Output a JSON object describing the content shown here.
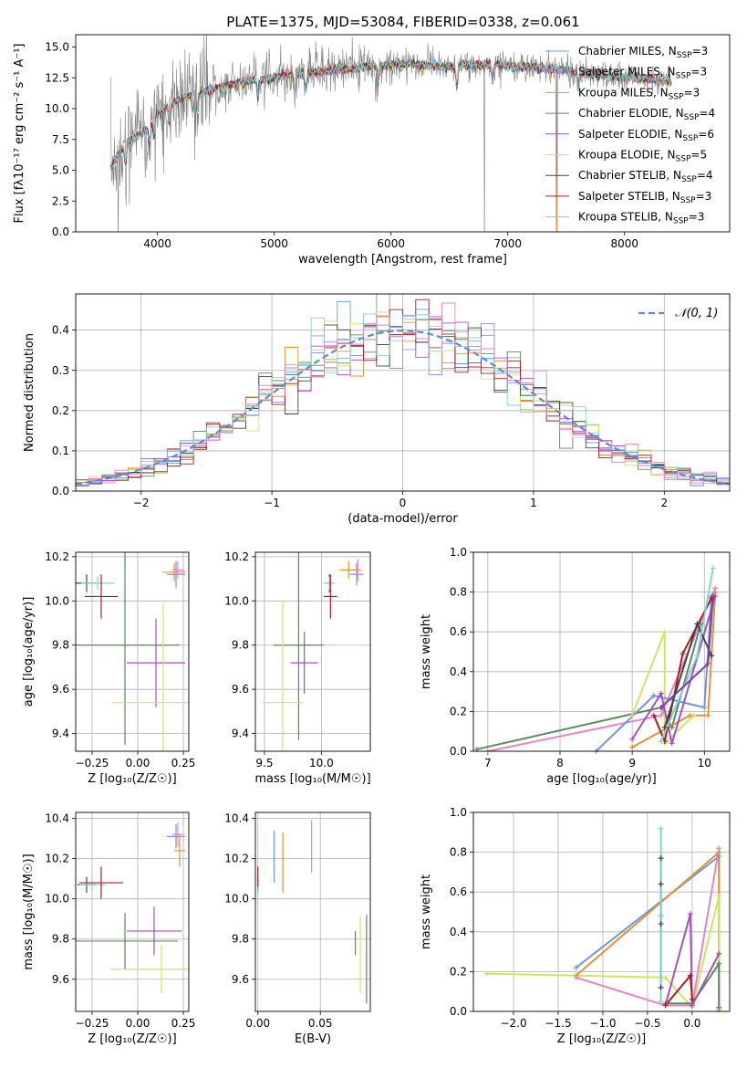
{
  "figure": {
    "title": "PLATE=1375, MJD=53084, FIBERID=0338, z=0.061"
  },
  "colors": [
    "#6f97e0",
    "#9a8de0",
    "#e89134",
    "#5b8a5b",
    "#a54fc3",
    "#d7e25c",
    "#444444",
    "#b01c1c",
    "#7fd2dc",
    "#e884c4",
    "#808080"
  ],
  "chart_data": [
    {
      "id": "spectrum",
      "type": "line",
      "xlabel": "wavelength [Angstrom, rest frame]",
      "ylabel": "Flux [fλ10⁻¹⁷ erg cm⁻² s⁻¹ A⁻¹]",
      "xlim": [
        3300,
        8900
      ],
      "ylim": [
        0,
        16
      ],
      "xticks": [
        4000,
        5000,
        6000,
        7000,
        8000
      ],
      "yticks": [
        0.0,
        2.5,
        5.0,
        7.5,
        10.0,
        12.5,
        15.0
      ],
      "grid": false,
      "legend_position": "right",
      "data_color": "#808080",
      "series": [
        {
          "name": "Chabrier MILES, N",
          "sub": "SSP",
          "suffix": "=3",
          "color": "#6f97e0"
        },
        {
          "name": "Salpeter MILES, N",
          "sub": "SSP",
          "suffix": "=3",
          "color": "#9a8de0"
        },
        {
          "name": "Kroupa MILES, N",
          "sub": "SSP",
          "suffix": "=3",
          "color": "#e89134"
        },
        {
          "name": "Chabrier ELODIE, N",
          "sub": "SSP",
          "suffix": "=4",
          "color": "#5b8a5b"
        },
        {
          "name": "Salpeter ELODIE, N",
          "sub": "SSP",
          "suffix": "=6",
          "color": "#a54fc3"
        },
        {
          "name": "Kroupa ELODIE, N",
          "sub": "SSP",
          "suffix": "=5",
          "color": "#d7e25c"
        },
        {
          "name": "Chabrier STELIB, N",
          "sub": "SSP",
          "suffix": "=4",
          "color": "#444444"
        },
        {
          "name": "Salpeter STELIB, N",
          "sub": "SSP",
          "suffix": "=3",
          "color": "#b01c1c"
        },
        {
          "name": "Kroupa STELIB, N",
          "sub": "SSP",
          "suffix": "=3",
          "color": "#7fd2dc"
        }
      ],
      "continuum": [
        [
          3600,
          5.2
        ],
        [
          3700,
          6.8
        ],
        [
          3800,
          7.6
        ],
        [
          3900,
          8.2
        ],
        [
          4000,
          9.6
        ],
        [
          4100,
          10.3
        ],
        [
          4200,
          10.8
        ],
        [
          4300,
          11.1
        ],
        [
          4500,
          11.6
        ],
        [
          4700,
          12.1
        ],
        [
          4900,
          12.4
        ],
        [
          5100,
          12.7
        ],
        [
          5300,
          12.9
        ],
        [
          5500,
          13.1
        ],
        [
          5700,
          13.3
        ],
        [
          5900,
          13.5
        ],
        [
          6100,
          13.6
        ],
        [
          6300,
          13.5
        ],
        [
          6500,
          13.4
        ],
        [
          6700,
          13.6
        ],
        [
          6900,
          13.6
        ],
        [
          7100,
          13.4
        ],
        [
          7300,
          13.3
        ],
        [
          7500,
          13.1
        ],
        [
          7700,
          12.9
        ],
        [
          7900,
          12.6
        ],
        [
          8100,
          12.5
        ],
        [
          8300,
          12.3
        ],
        [
          8400,
          12.2
        ]
      ]
    },
    {
      "id": "residuals",
      "type": "histogram",
      "xlabel": "(data-model)/error",
      "ylabel": "Normed distribution",
      "xlim": [
        -2.5,
        2.5
      ],
      "ylim": [
        0,
        0.49
      ],
      "xticks": [
        -2,
        -1,
        0,
        1,
        2
      ],
      "yticks": [
        0.0,
        0.1,
        0.2,
        0.3,
        0.4
      ],
      "grid": true,
      "bin_width": 0.1,
      "legend_position": "top-right",
      "reference": {
        "name": "𝒩(0, 1)",
        "color": "#5b8bd6",
        "style": "dashed",
        "mean": 0,
        "sigma": 1
      }
    },
    {
      "id": "age-vs-Z",
      "type": "scatter",
      "xlabel": "Z [log₁₀(Z/Z☉)]",
      "ylabel": "age  [log₁₀(age/yr)]",
      "xlim": [
        -0.34,
        0.28
      ],
      "ylim": [
        9.32,
        10.22
      ],
      "xticks": [
        -0.25,
        0.0,
        0.25
      ],
      "yticks": [
        9.4,
        9.6,
        9.8,
        10.0,
        10.2
      ],
      "grid": true,
      "points": [
        {
          "x": -0.28,
          "y": 10.08,
          "xerr": 0.06,
          "yerr": 0.04,
          "color": "#444444"
        },
        {
          "x": -0.22,
          "y": 10.08,
          "xerr": 0.09,
          "yerr": 0.03,
          "color": "#7fd2dc"
        },
        {
          "x": -0.2,
          "y": 10.02,
          "xerr": 0.09,
          "yerr": 0.1,
          "color": "#b01c1c"
        },
        {
          "x": 0.21,
          "y": 10.12,
          "xerr": 0.05,
          "yerr": 0.06,
          "color": "#6f97e0"
        },
        {
          "x": 0.22,
          "y": 10.14,
          "xerr": 0.03,
          "yerr": 0.04,
          "color": "#e884c4"
        },
        {
          "x": 0.2,
          "y": 10.13,
          "xerr": 0.06,
          "yerr": 0.04,
          "color": "#e89134"
        },
        {
          "x": -0.07,
          "y": 9.8,
          "xerr": 0.3,
          "yerr": 0.45,
          "color": "#5b8a5b"
        },
        {
          "x": 0.1,
          "y": 9.72,
          "xerr": 0.16,
          "yerr": 0.2,
          "color": "#a54fc3"
        },
        {
          "x": 0.14,
          "y": 9.54,
          "xerr": 0.28,
          "yerr": 0.45,
          "color": "#d7e25c"
        }
      ]
    },
    {
      "id": "age-vs-mass",
      "type": "scatter",
      "xlabel": "mass [log₁₀(M/M☉)]",
      "ylabel": "",
      "xlim": [
        9.42,
        10.43
      ],
      "ylim": [
        9.32,
        10.22
      ],
      "xticks": [
        9.5,
        10.0
      ],
      "yticks": [
        9.4,
        9.6,
        9.8,
        10.0,
        10.2
      ],
      "grid": true,
      "points": [
        {
          "x": 10.07,
          "y": 10.08,
          "xerr": 0.03,
          "yerr": 0.04,
          "color": "#444444"
        },
        {
          "x": 10.07,
          "y": 10.08,
          "xerr": 0.05,
          "yerr": 0.03,
          "color": "#7fd2dc"
        },
        {
          "x": 10.08,
          "y": 10.02,
          "xerr": 0.06,
          "yerr": 0.1,
          "color": "#b01c1c"
        },
        {
          "x": 10.31,
          "y": 10.12,
          "xerr": 0.06,
          "yerr": 0.05,
          "color": "#6f97e0"
        },
        {
          "x": 10.32,
          "y": 10.14,
          "xerr": 0.03,
          "yerr": 0.05,
          "color": "#e884c4"
        },
        {
          "x": 10.24,
          "y": 10.14,
          "xerr": 0.08,
          "yerr": 0.04,
          "color": "#e89134"
        },
        {
          "x": 9.8,
          "y": 9.8,
          "xerr": 0.22,
          "yerr": 0.43,
          "color": "#5b8a5b"
        },
        {
          "x": 9.85,
          "y": 9.72,
          "xerr": 0.12,
          "yerr": 0.14,
          "color": "#a54fc3"
        },
        {
          "x": 9.66,
          "y": 9.54,
          "xerr": 0.18,
          "yerr": 0.46,
          "color": "#d7e25c"
        }
      ]
    },
    {
      "id": "weight-vs-age",
      "type": "line",
      "xlabel": "age  [log₁₀(age/yr)]",
      "ylabel": "mass weight",
      "xlim": [
        6.8,
        10.35
      ],
      "ylim": [
        0.0,
        1.0
      ],
      "xticks": [
        7,
        8,
        9,
        10
      ],
      "yticks": [
        0.0,
        0.2,
        0.4,
        0.6,
        0.8,
        1.0
      ],
      "grid": true,
      "series": [
        {
          "color": "#5b8a5b",
          "x": [
            6.85,
            9.4,
            9.55,
            9.95
          ],
          "y": [
            0.01,
            0.22,
            0.12,
            0.64
          ]
        },
        {
          "color": "#e884c4",
          "x": [
            7.0,
            9.4,
            10.15
          ],
          "y": [
            0.0,
            0.18,
            0.82
          ]
        },
        {
          "color": "#d7e25c",
          "x": [
            9.0,
            9.45,
            9.45,
            9.85
          ],
          "y": [
            0.18,
            0.6,
            0.04,
            0.18
          ]
        },
        {
          "color": "#6f97e0",
          "x": [
            8.5,
            9.3,
            10.0,
            10.1
          ],
          "y": [
            0.0,
            0.28,
            0.22,
            0.78
          ]
        },
        {
          "color": "#e89134",
          "x": [
            9.0,
            9.8,
            10.05,
            10.15
          ],
          "y": [
            0.02,
            0.18,
            0.18,
            0.8
          ]
        },
        {
          "color": "#a54fc3",
          "x": [
            9.0,
            9.4,
            9.55,
            10.15
          ],
          "y": [
            0.06,
            0.29,
            0.04,
            0.78
          ]
        },
        {
          "color": "#b01c1c",
          "x": [
            9.3,
            9.45,
            9.7,
            10.1
          ],
          "y": [
            0.18,
            0.05,
            0.49,
            0.77
          ]
        },
        {
          "color": "#444444",
          "x": [
            9.45,
            9.9,
            10.1
          ],
          "y": [
            0.12,
            0.64,
            0.48
          ]
        },
        {
          "color": "#7fd2dc",
          "x": [
            9.4,
            9.9,
            10.12
          ],
          "y": [
            0.05,
            0.48,
            0.92
          ]
        },
        {
          "color": "#7a3dab",
          "x": [
            9.4,
            10.05,
            10.12
          ],
          "y": [
            0.22,
            0.44,
            0.78
          ]
        }
      ]
    },
    {
      "id": "mass-vs-Z",
      "type": "scatter",
      "xlabel": "Z [log₁₀(Z/Z☉)]",
      "ylabel": "mass [log₁₀(M/M☉)]",
      "xlim": [
        -0.34,
        0.28
      ],
      "ylim": [
        9.44,
        10.43
      ],
      "xticks": [
        -0.25,
        0.0,
        0.25
      ],
      "yticks": [
        9.6,
        9.8,
        10.0,
        10.2,
        10.4
      ],
      "grid": true,
      "points": [
        {
          "x": -0.28,
          "y": 10.07,
          "xerr": 0.05,
          "yerr": 0.04,
          "color": "#444444"
        },
        {
          "x": -0.25,
          "y": 10.07,
          "xerr": 0.07,
          "yerr": 0.03,
          "color": "#7fd2dc"
        },
        {
          "x": -0.2,
          "y": 10.08,
          "xerr": 0.12,
          "yerr": 0.08,
          "color": "#b01c1c"
        },
        {
          "x": 0.21,
          "y": 10.31,
          "xerr": 0.05,
          "yerr": 0.06,
          "color": "#6f97e0"
        },
        {
          "x": 0.22,
          "y": 10.32,
          "xerr": 0.03,
          "yerr": 0.06,
          "color": "#e884c4"
        },
        {
          "x": 0.23,
          "y": 10.24,
          "xerr": 0.03,
          "yerr": 0.08,
          "color": "#e89134"
        },
        {
          "x": -0.07,
          "y": 9.79,
          "xerr": 0.29,
          "yerr": 0.14,
          "color": "#5b8a5b"
        },
        {
          "x": 0.09,
          "y": 9.84,
          "xerr": 0.15,
          "yerr": 0.12,
          "color": "#a54fc3"
        },
        {
          "x": 0.13,
          "y": 9.65,
          "xerr": 0.28,
          "yerr": 0.12,
          "color": "#d7e25c"
        }
      ]
    },
    {
      "id": "mass-vs-EBV",
      "type": "scatter",
      "xlabel": "E(B-V)",
      "ylabel": "",
      "xlim": [
        -0.002,
        0.09
      ],
      "ylim": [
        9.44,
        10.43
      ],
      "xticks": [
        0.0,
        0.05
      ],
      "yticks": [
        9.6,
        9.8,
        10.0,
        10.2,
        10.4
      ],
      "grid": true,
      "points": [
        {
          "x": 0.0,
          "y": 10.07,
          "xerr": 0,
          "yerr": 0.04,
          "color": "#444444"
        },
        {
          "x": 0.0,
          "y": 10.07,
          "xerr": 0,
          "yerr": 0.04,
          "color": "#7fd2dc"
        },
        {
          "x": 0.0,
          "y": 10.11,
          "xerr": 0,
          "yerr": 0.05,
          "color": "#b01c1c"
        },
        {
          "x": 0.013,
          "y": 10.21,
          "xerr": 0,
          "yerr": 0.13,
          "color": "#6f97e0"
        },
        {
          "x": 0.02,
          "y": 10.18,
          "xerr": 0,
          "yerr": 0.15,
          "color": "#e89134"
        },
        {
          "x": 0.043,
          "y": 10.26,
          "xerr": 0,
          "yerr": 0.13,
          "color": "#e884c4"
        },
        {
          "x": 0.078,
          "y": 9.78,
          "xerr": 0,
          "yerr": 0.06,
          "color": "#a54fc3"
        },
        {
          "x": 0.082,
          "y": 9.72,
          "xerr": 0,
          "yerr": 0.19,
          "color": "#d7e25c"
        },
        {
          "x": 0.087,
          "y": 9.7,
          "xerr": 0,
          "yerr": 0.22,
          "color": "#5b8a5b"
        }
      ]
    },
    {
      "id": "weight-vs-Z",
      "type": "line",
      "xlabel": "Z [log₁₀(Z/Z☉)]",
      "ylabel": "mass weight",
      "xlim": [
        -2.45,
        0.42
      ],
      "ylim": [
        0.0,
        1.0
      ],
      "xticks": [
        -2.0,
        -1.5,
        -1.0,
        -0.5,
        0.0
      ],
      "yticks": [
        0.0,
        0.2,
        0.4,
        0.6,
        0.8,
        1.0
      ],
      "grid": true,
      "series": [
        {
          "color": "#6f97e0",
          "x": [
            -1.3,
            0.3,
            0.3
          ],
          "y": [
            0.22,
            0.78,
            0.02
          ]
        },
        {
          "color": "#e89134",
          "x": [
            -1.3,
            0.3,
            0.3
          ],
          "y": [
            0.18,
            0.8,
            0.01
          ]
        },
        {
          "color": "#d7e25c",
          "x": [
            -2.3,
            -0.3,
            0.0,
            0.3,
            0.3
          ],
          "y": [
            0.19,
            0.17,
            0.02,
            0.58,
            0.02
          ]
        },
        {
          "color": "#e884c4",
          "x": [
            -1.3,
            -0.3,
            0.0,
            0.3
          ],
          "y": [
            0.17,
            0.03,
            0.03,
            0.82
          ]
        },
        {
          "color": "#5b8a5b",
          "x": [
            -0.3,
            0.0,
            0.3,
            0.3
          ],
          "y": [
            0.04,
            0.04,
            0.24,
            0.02
          ]
        },
        {
          "color": "#a54fc3",
          "x": [
            -0.3,
            -0.02,
            0.0,
            0.3
          ],
          "y": [
            0.03,
            0.49,
            0.03,
            0.29
          ]
        },
        {
          "color": "#b01c1c",
          "x": [
            -0.3,
            -0.02,
            0.0
          ],
          "y": [
            0.03,
            0.18,
            0.06
          ]
        },
        {
          "color": "#444444",
          "x": [
            -0.35,
            -0.35,
            -0.35,
            -0.35,
            -0.35
          ],
          "y": [
            0.77,
            0.64,
            0.48,
            0.44,
            0.12
          ]
        },
        {
          "color": "#7fd2dc",
          "x": [
            -0.35,
            -0.35,
            -0.35
          ],
          "y": [
            0.92,
            0.48,
            0.05
          ]
        }
      ]
    }
  ]
}
